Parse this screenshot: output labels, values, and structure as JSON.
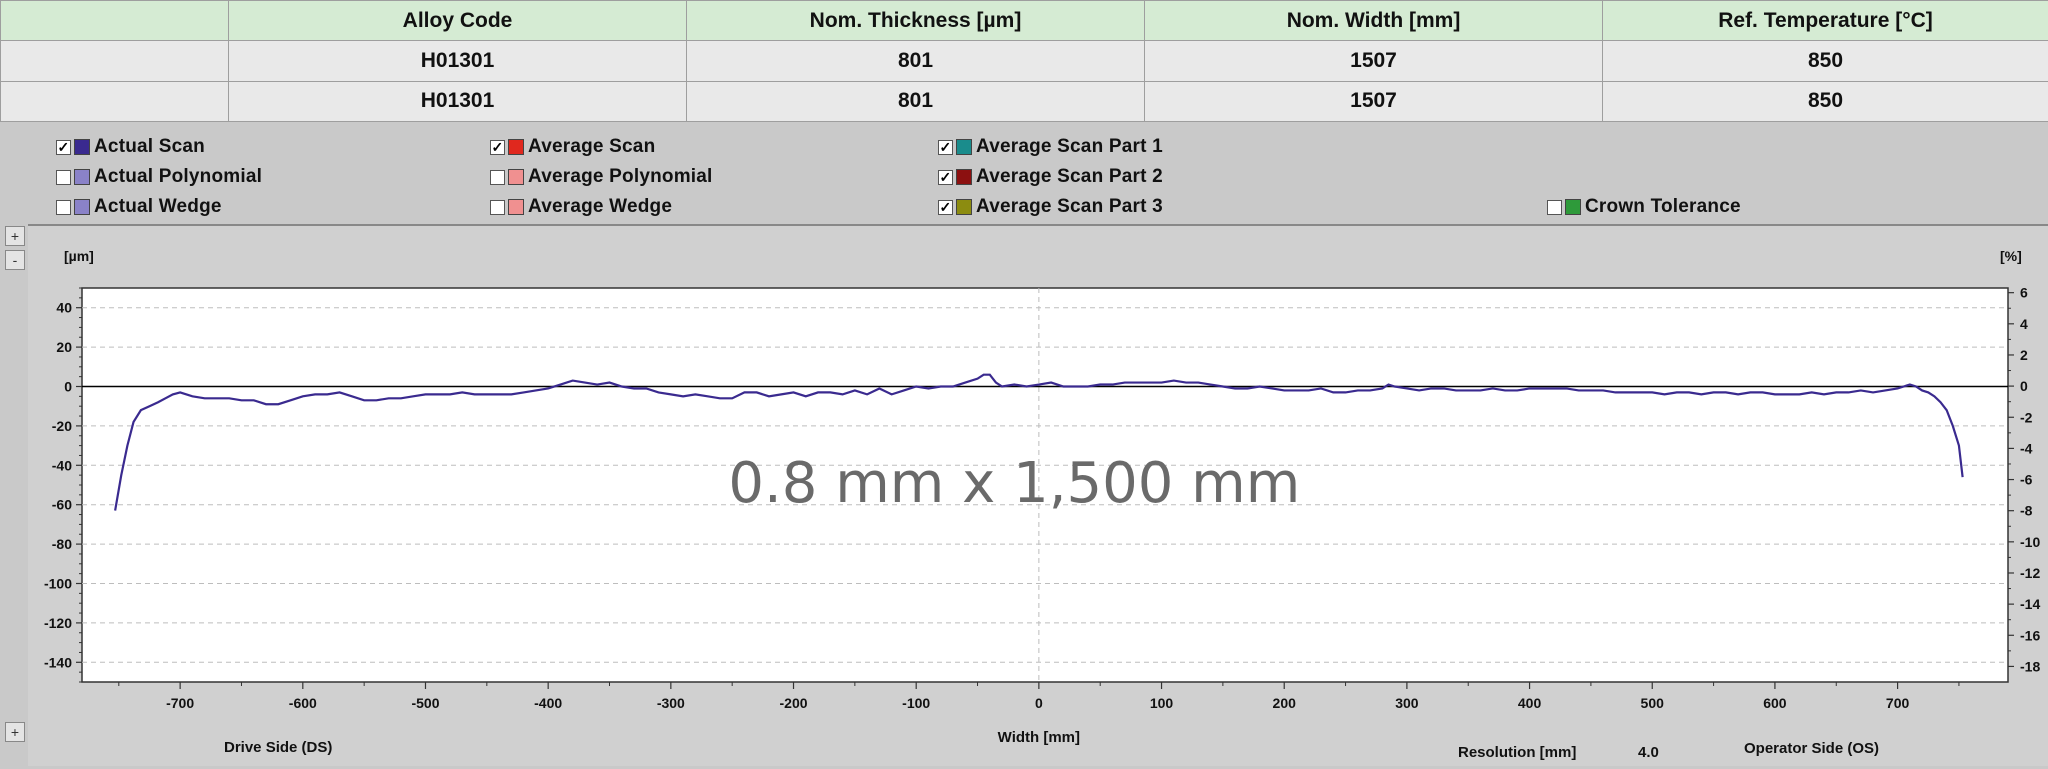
{
  "table": {
    "headers": [
      "",
      "Alloy Code",
      "Nom. Thickness [µm]",
      "Nom. Width [mm]",
      "Ref. Temperature [°C]"
    ],
    "rows": [
      [
        "",
        "H01301",
        "801",
        "1507",
        "850"
      ],
      [
        "",
        "H01301",
        "801",
        "1507",
        "850"
      ]
    ]
  },
  "legend": {
    "items": [
      {
        "label": "Actual Scan",
        "checked": true,
        "color": "#3a2a8f"
      },
      {
        "label": "Actual Polynomial",
        "checked": false,
        "color": "#8a82c8"
      },
      {
        "label": "Actual Wedge",
        "checked": false,
        "color": "#8a82c8"
      },
      {
        "label": "Average Scan",
        "checked": true,
        "color": "#e0281e"
      },
      {
        "label": "Average Polynomial",
        "checked": false,
        "color": "#f09090"
      },
      {
        "label": "Average Wedge",
        "checked": false,
        "color": "#f09090"
      },
      {
        "label": "Average Scan Part 1",
        "checked": true,
        "color": "#1a8c8c"
      },
      {
        "label": "Average Scan Part 2",
        "checked": true,
        "color": "#8c1010"
      },
      {
        "label": "Average Scan Part 3",
        "checked": true,
        "color": "#8c8c10"
      },
      {
        "label": "Crown Tolerance",
        "checked": false,
        "color": "#2e9a3a"
      }
    ]
  },
  "zoom": {
    "plus": "+",
    "minus": "-"
  },
  "chart_data": {
    "type": "line",
    "y_unit_left": "[µm]",
    "y_unit_right": "[%]",
    "xlabel": "Width [mm]",
    "xlim": [
      -780,
      790
    ],
    "ylim": [
      -150,
      50
    ],
    "y2lim": [
      -19,
      6.3
    ],
    "x_ticks": [
      -700,
      -600,
      -500,
      -400,
      -300,
      -200,
      -100,
      0,
      100,
      200,
      300,
      400,
      500,
      600,
      700
    ],
    "y_ticks": [
      40,
      20,
      0,
      -20,
      -40,
      -60,
      -80,
      -100,
      -120,
      -140
    ],
    "y2_ticks": [
      6,
      4,
      2,
      0,
      -2,
      -4,
      -6,
      -8,
      -10,
      -12,
      -14,
      -16,
      -18
    ],
    "grid": true,
    "line_color": "#3a2a8f",
    "series": [
      {
        "name": "Actual Scan",
        "x": [
          -753,
          -748,
          -743,
          -738,
          -732,
          -725,
          -718,
          -712,
          -706,
          -700,
          -690,
          -680,
          -670,
          -660,
          -650,
          -640,
          -630,
          -620,
          -610,
          -600,
          -590,
          -580,
          -570,
          -560,
          -550,
          -540,
          -530,
          -520,
          -510,
          -500,
          -490,
          -480,
          -470,
          -460,
          -450,
          -440,
          -430,
          -420,
          -410,
          -400,
          -390,
          -380,
          -370,
          -360,
          -350,
          -340,
          -330,
          -320,
          -310,
          -300,
          -290,
          -280,
          -270,
          -260,
          -250,
          -240,
          -230,
          -220,
          -210,
          -200,
          -190,
          -180,
          -170,
          -160,
          -150,
          -140,
          -130,
          -120,
          -110,
          -100,
          -90,
          -80,
          -70,
          -60,
          -50,
          -45,
          -40,
          -35,
          -30,
          -20,
          -10,
          0,
          10,
          20,
          30,
          40,
          50,
          60,
          70,
          80,
          90,
          100,
          110,
          120,
          130,
          140,
          150,
          160,
          170,
          180,
          190,
          200,
          210,
          220,
          230,
          240,
          250,
          260,
          270,
          280,
          285,
          290,
          300,
          310,
          320,
          330,
          340,
          350,
          360,
          370,
          380,
          390,
          400,
          410,
          420,
          430,
          440,
          450,
          460,
          470,
          480,
          490,
          500,
          510,
          520,
          530,
          540,
          550,
          560,
          570,
          580,
          590,
          600,
          610,
          620,
          630,
          640,
          650,
          660,
          670,
          680,
          690,
          700,
          705,
          710,
          715,
          720,
          725,
          730,
          735,
          740,
          745,
          750,
          753
        ],
        "y": [
          -63,
          -45,
          -30,
          -18,
          -12,
          -10,
          -8,
          -6,
          -4,
          -3,
          -5,
          -6,
          -6,
          -6,
          -7,
          -7,
          -9,
          -9,
          -7,
          -5,
          -4,
          -4,
          -3,
          -5,
          -7,
          -7,
          -6,
          -6,
          -5,
          -4,
          -4,
          -4,
          -3,
          -4,
          -4,
          -4,
          -4,
          -3,
          -2,
          -1,
          1,
          3,
          2,
          1,
          2,
          0,
          -1,
          -1,
          -3,
          -4,
          -5,
          -4,
          -5,
          -6,
          -6,
          -3,
          -3,
          -5,
          -4,
          -3,
          -5,
          -3,
          -3,
          -4,
          -2,
          -4,
          -1,
          -4,
          -2,
          0,
          -1,
          0,
          0,
          2,
          4,
          6,
          6,
          2,
          0,
          1,
          0,
          1,
          2,
          0,
          0,
          0,
          1,
          1,
          2,
          2,
          2,
          2,
          3,
          2,
          2,
          1,
          0,
          -1,
          -1,
          0,
          -1,
          -2,
          -2,
          -2,
          -1,
          -3,
          -3,
          -2,
          -2,
          -1,
          1,
          0,
          -1,
          -2,
          -1,
          -1,
          -2,
          -2,
          -2,
          -1,
          -2,
          -2,
          -1,
          -1,
          -1,
          -1,
          -2,
          -2,
          -2,
          -3,
          -3,
          -3,
          -3,
          -4,
          -3,
          -3,
          -4,
          -3,
          -3,
          -4,
          -3,
          -3,
          -4,
          -4,
          -4,
          -3,
          -4,
          -3,
          -3,
          -2,
          -3,
          -2,
          -1,
          0,
          1,
          0,
          -2,
          -3,
          -5,
          -8,
          -12,
          -20,
          -30,
          -46
        ]
      }
    ]
  },
  "footer": {
    "drive_side": "Drive Side (DS)",
    "operator_side": "Operator Side (OS)",
    "resolution_label": "Resolution [mm]",
    "resolution_value": "4.0"
  },
  "watermark": "0.8 mm x 1,500 mm"
}
